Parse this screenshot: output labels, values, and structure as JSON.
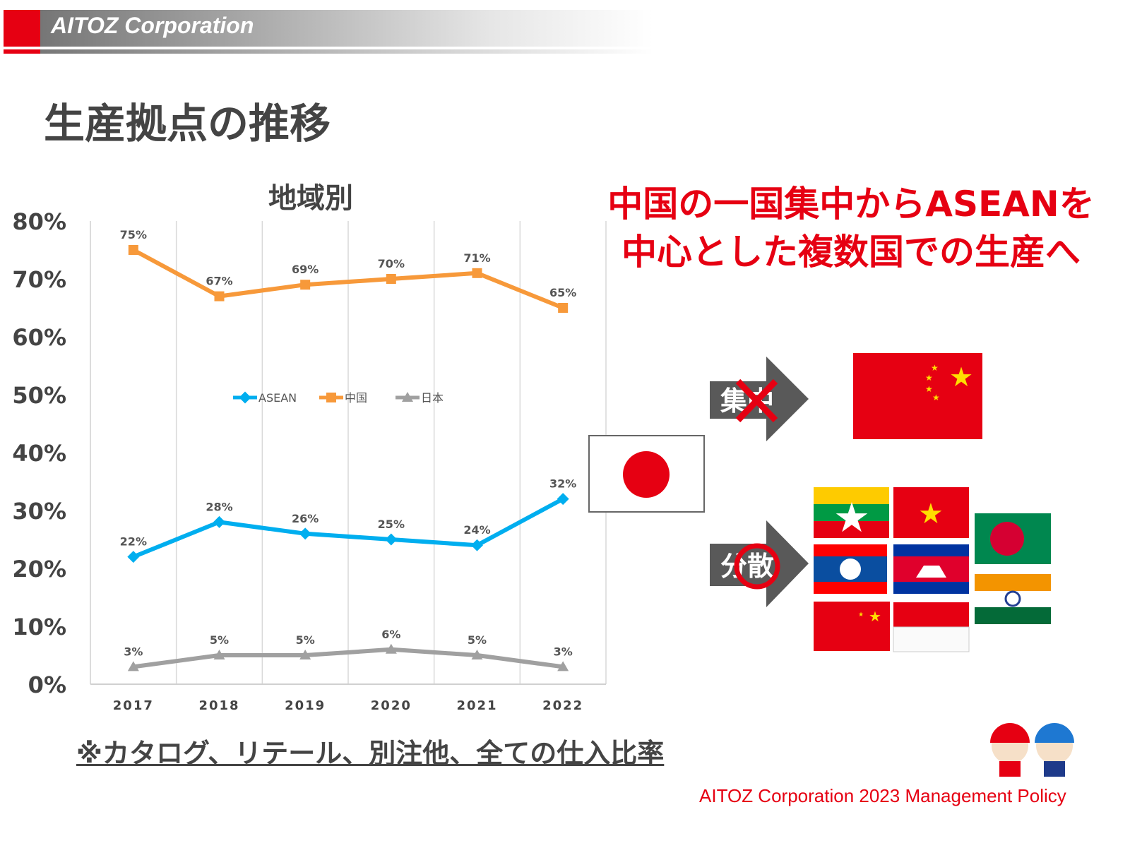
{
  "header": {
    "brand": "AITOZ Corporation",
    "accent": "#e60012"
  },
  "slide": {
    "title": "生産拠点の推移",
    "message_line1": "中国の一国集中からASEANを",
    "message_line2": "中心とした複数国での生産へ",
    "note": "※カタログ、リテール、別注他、全ての仕入比率",
    "footer": "AITOZ Corporation 2023 Management Policy"
  },
  "diagram": {
    "arrow_concentrate": "集中",
    "arrow_disperse": "分散",
    "flags": [
      "japan",
      "china",
      "myanmar",
      "vietnam",
      "laos",
      "cambodia",
      "china",
      "indonesia",
      "bangladesh",
      "india"
    ]
  },
  "chart_data": {
    "type": "line",
    "title": "地域別",
    "xlabel": "",
    "ylabel": "",
    "categories": [
      "2017",
      "2018",
      "2019",
      "2020",
      "2021",
      "2022"
    ],
    "ylim": [
      0,
      80
    ],
    "yticks": [
      "0%",
      "10%",
      "20%",
      "30%",
      "40%",
      "50%",
      "60%",
      "70%",
      "80%"
    ],
    "grid": "vertical",
    "legend": "center",
    "series": [
      {
        "name": "ASEAN",
        "color": "#00aeef",
        "values": [
          22,
          28,
          26,
          25,
          24,
          32
        ],
        "labels": [
          "22%",
          "28%",
          "26%",
          "25%",
          "24%",
          "32%"
        ]
      },
      {
        "name": "中国",
        "color": "#f7993a",
        "values": [
          75,
          67,
          69,
          70,
          71,
          65
        ],
        "labels": [
          "75%",
          "67%",
          "69%",
          "70%",
          "71%",
          "65%"
        ]
      },
      {
        "name": "日本",
        "color": "#a0a0a0",
        "values": [
          3,
          5,
          5,
          6,
          5,
          3
        ],
        "labels": [
          "3%",
          "5%",
          "5%",
          "6%",
          "5%",
          "3%"
        ]
      }
    ]
  }
}
